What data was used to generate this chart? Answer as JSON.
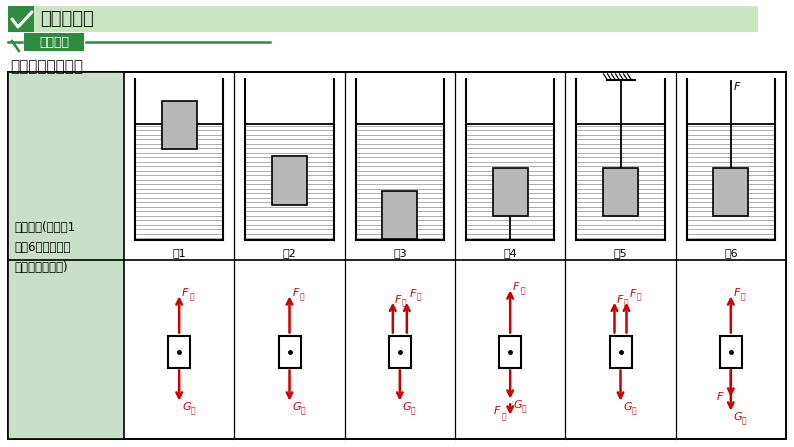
{
  "title_text": "微技能突破",
  "method_text": "方法指导",
  "subtitle_text": "浮力六种模型分析",
  "left_line1": "受力分析(画出图1",
  "left_line2": "～图6中物物体的",
  "left_line3": "受力分析示意图)",
  "figure_labels": [
    "图1",
    "图2",
    "图3",
    "图4",
    "图5",
    "图6"
  ],
  "bg_color": "#ffffff",
  "green_dark": "#2e8b3e",
  "green_light": "#c8e6c0",
  "left_cell_bg": "#c8dfc8",
  "arrow_color": "#cc0000",
  "water_hatch_color": "#888888",
  "object_color": "#b0b0b0"
}
